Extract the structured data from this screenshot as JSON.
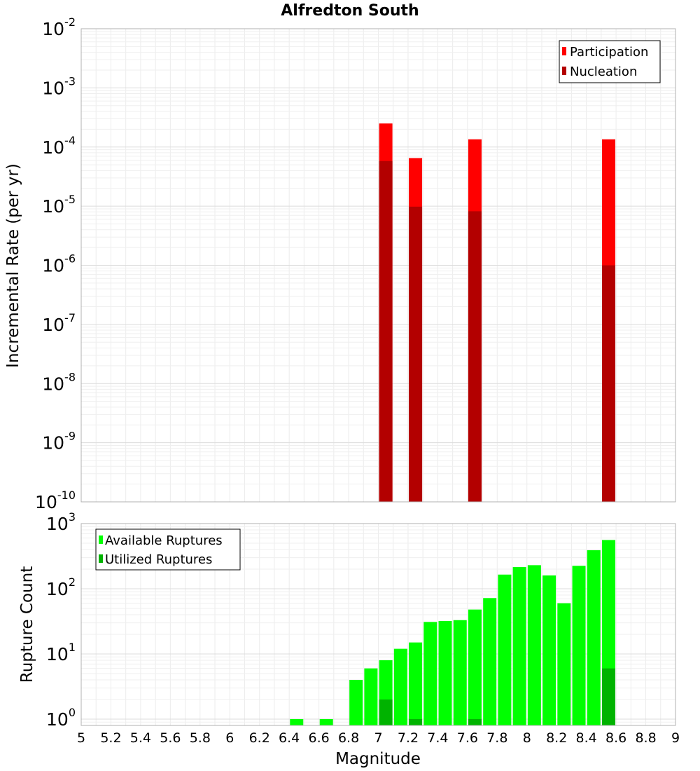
{
  "chart_data": [
    {
      "type": "bar",
      "title": "Alfredton South",
      "xlabel": "",
      "ylabel": "Incremental Rate (per yr)",
      "yscale": "log",
      "xlim": [
        5,
        9
      ],
      "ylim": [
        1e-10,
        0.01
      ],
      "y_tick_labels": [
        {
          "base": "10",
          "exp": "-2"
        },
        {
          "base": "10",
          "exp": "-3"
        },
        {
          "base": "10",
          "exp": "-4"
        },
        {
          "base": "10",
          "exp": "-5"
        },
        {
          "base": "10",
          "exp": "-6"
        },
        {
          "base": "10",
          "exp": "-7"
        },
        {
          "base": "10",
          "exp": "-8"
        },
        {
          "base": "10",
          "exp": "-9"
        },
        {
          "base": "10",
          "exp": "-10"
        }
      ],
      "grid": true,
      "legend_position": "top-right",
      "x": [
        7.05,
        7.25,
        7.65,
        8.55
      ],
      "series": [
        {
          "name": "Participation",
          "color": "#ff0000",
          "values": [
            0.00025,
            6.5e-05,
            0.000135,
            0.000135
          ]
        },
        {
          "name": "Nucleation",
          "color": "#b30000",
          "values": [
            5.8e-05,
            9.8e-06,
            8.2e-06,
            1e-06
          ]
        }
      ]
    },
    {
      "type": "bar",
      "title": "",
      "xlabel": "Magnitude",
      "ylabel": "Rupture Count",
      "yscale": "log",
      "xlim": [
        5,
        9
      ],
      "ylim": [
        0.8,
        1000
      ],
      "y_tick_labels": [
        {
          "base": "10",
          "exp": "3"
        },
        {
          "base": "10",
          "exp": "2"
        },
        {
          "base": "10",
          "exp": "1"
        },
        {
          "base": "10",
          "exp": "0"
        }
      ],
      "x_tick_labels": [
        "5",
        "5.2",
        "5.4",
        "5.6",
        "5.8",
        "6",
        "6.2",
        "6.4",
        "6.6",
        "6.8",
        "7",
        "7.2",
        "7.4",
        "7.6",
        "7.8",
        "8",
        "8.2",
        "8.4",
        "8.6",
        "8.8",
        "9"
      ],
      "grid": true,
      "legend_position": "top-left",
      "x": [
        6.45,
        6.65,
        6.85,
        6.95,
        7.05,
        7.15,
        7.25,
        7.35,
        7.45,
        7.55,
        7.65,
        7.75,
        7.85,
        7.95,
        8.05,
        8.15,
        8.25,
        8.35,
        8.45,
        8.55
      ],
      "series": [
        {
          "name": "Available Ruptures",
          "color": "#00ff00",
          "values": [
            1,
            1,
            4,
            6,
            8,
            12,
            15,
            31,
            32,
            33,
            48,
            72,
            165,
            215,
            230,
            160,
            60,
            225,
            390,
            560
          ]
        },
        {
          "name": "Utilized Ruptures",
          "color": "#00b300",
          "values": [
            0,
            0,
            0,
            0,
            2,
            0,
            1,
            0,
            0,
            0,
            1,
            0,
            0,
            0,
            0,
            0,
            0,
            0,
            0,
            6
          ]
        }
      ]
    }
  ]
}
